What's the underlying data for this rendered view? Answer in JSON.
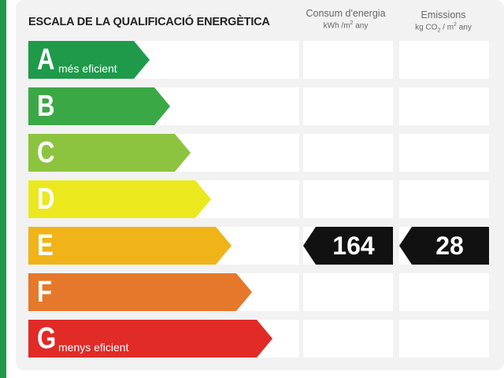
{
  "title": "ESCALA DE LA QUALIFICACIÓ ENERGÈTICA",
  "columns": {
    "consumption": {
      "label": "Consum d'energia",
      "unit_prefix": "kWh /m",
      "unit_sup": "2",
      "unit_suffix": " any"
    },
    "emissions": {
      "label": "Emissions",
      "unit_prefix": "kg CO",
      "unit_sub": "2",
      "unit_mid": " / m",
      "unit_sup": "2",
      "unit_suffix": "  any"
    }
  },
  "ratings": [
    {
      "letter": "A",
      "desc": "més eficient",
      "color": "#1e9a4a"
    },
    {
      "letter": "B",
      "desc": "",
      "color": "#3aa845"
    },
    {
      "letter": "C",
      "desc": "",
      "color": "#8cc43f"
    },
    {
      "letter": "D",
      "desc": "",
      "color": "#ebe91e"
    },
    {
      "letter": "E",
      "desc": "",
      "color": "#f0b419"
    },
    {
      "letter": "F",
      "desc": "",
      "color": "#e5782b"
    },
    {
      "letter": "G",
      "desc": "menys eficient",
      "color": "#e02b27"
    }
  ],
  "current": {
    "rating": "E",
    "consumption": "164",
    "emissions": "28"
  }
}
